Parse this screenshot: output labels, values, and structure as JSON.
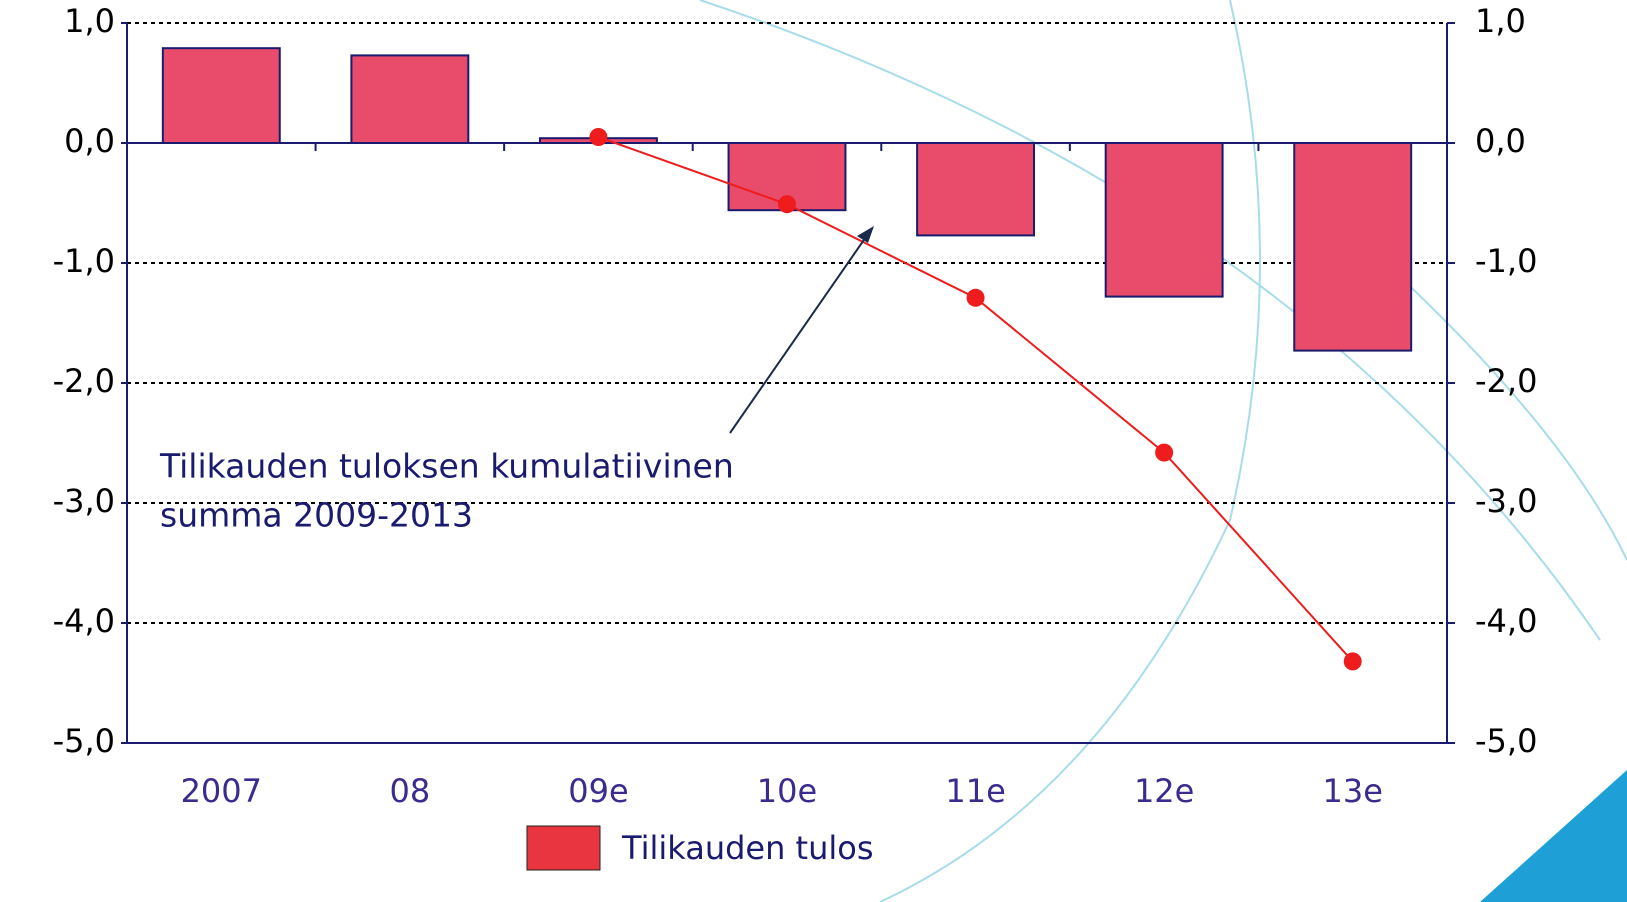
{
  "chart_data": {
    "type": "bar",
    "categories": [
      "2007",
      "08",
      "09e",
      "10e",
      "11e",
      "12e",
      "13e"
    ],
    "series": [
      {
        "name": "Tilikauden tulos",
        "type": "bar",
        "color": "#e94b6b",
        "values": [
          0.79,
          0.73,
          0.04,
          -0.56,
          -0.77,
          -1.28,
          -1.73
        ]
      },
      {
        "type": "line",
        "color": "#ee1c1c",
        "values": [
          null,
          null,
          0.05,
          -0.51,
          -1.29,
          -2.58,
          -4.32
        ]
      }
    ],
    "annotation": [
      "Tilikauden tuloksen kumulatiivinen",
      "summa 2009-2013"
    ],
    "ylim": [
      -5,
      1
    ],
    "yticks": [
      {
        "value": 1,
        "label": "1,0"
      },
      {
        "value": 0,
        "label": "0,0"
      },
      {
        "value": -1,
        "label": "-1,0"
      },
      {
        "value": -2,
        "label": "-2,0"
      },
      {
        "value": -3,
        "label": "-3,0"
      },
      {
        "value": -4,
        "label": "-4,0"
      },
      {
        "value": -5,
        "label": "-5,0"
      }
    ],
    "y2lim": [
      -5,
      1
    ],
    "y2ticks": [
      {
        "value": 1,
        "label": "1,0"
      },
      {
        "value": 0,
        "label": "0,0"
      },
      {
        "value": -1,
        "label": "-1,0"
      },
      {
        "value": -2,
        "label": "-2,0"
      },
      {
        "value": -3,
        "label": "-3,0"
      },
      {
        "value": -4,
        "label": "-4,0"
      },
      {
        "value": -5,
        "label": "-5,0"
      }
    ],
    "grid": true,
    "legend": "bottom"
  }
}
